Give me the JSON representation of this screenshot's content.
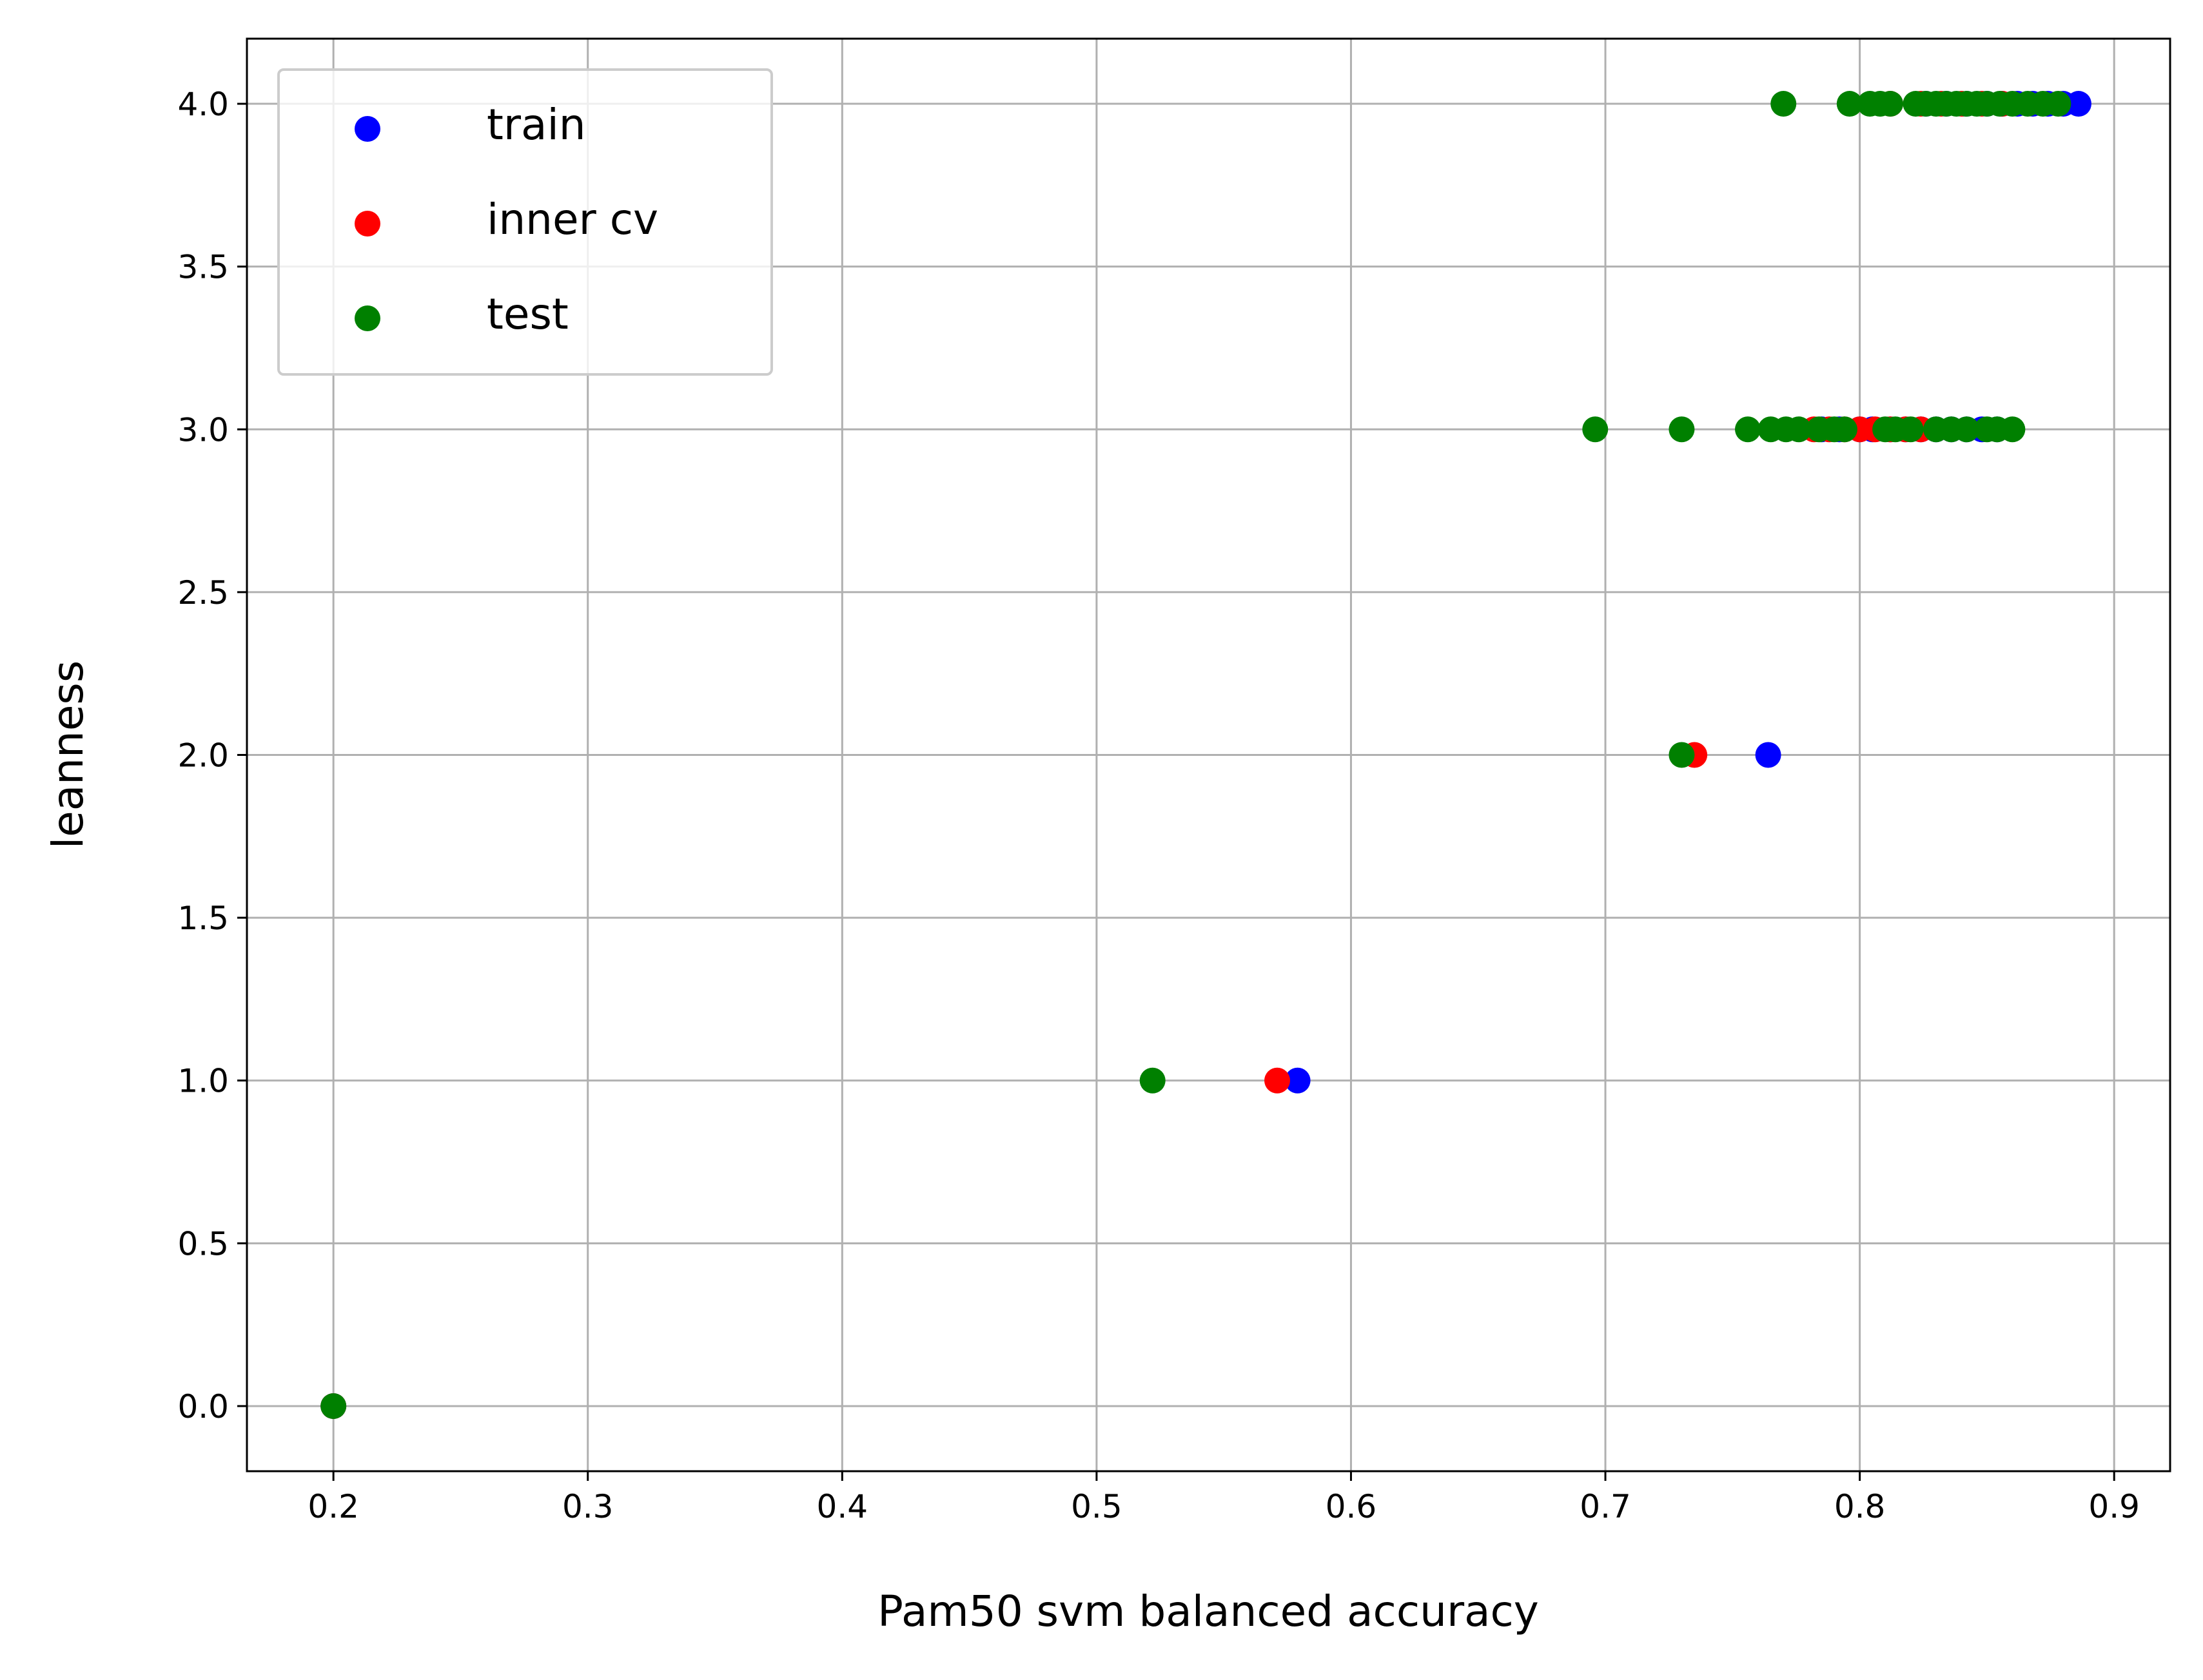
{
  "chart_data": {
    "type": "scatter",
    "title": "",
    "xlabel": "Pam50 svm balanced accuracy",
    "ylabel": "leanness",
    "xlim": [
      0.166,
      0.922
    ],
    "ylim": [
      -0.2,
      4.2
    ],
    "xticks": [
      {
        "value": 0.2,
        "label": "0.2"
      },
      {
        "value": 0.3,
        "label": "0.3"
      },
      {
        "value": 0.4,
        "label": "0.4"
      },
      {
        "value": 0.5,
        "label": "0.5"
      },
      {
        "value": 0.6,
        "label": "0.6"
      },
      {
        "value": 0.7,
        "label": "0.7"
      },
      {
        "value": 0.8,
        "label": "0.8"
      },
      {
        "value": 0.9,
        "label": "0.9"
      }
    ],
    "yticks": [
      {
        "value": 0.0,
        "label": "0.0"
      },
      {
        "value": 0.5,
        "label": "0.5"
      },
      {
        "value": 1.0,
        "label": "1.0"
      },
      {
        "value": 1.5,
        "label": "1.5"
      },
      {
        "value": 2.0,
        "label": "2.0"
      },
      {
        "value": 2.5,
        "label": "2.5"
      },
      {
        "value": 3.0,
        "label": "3.0"
      },
      {
        "value": 3.5,
        "label": "3.5"
      },
      {
        "value": 4.0,
        "label": "4.0"
      }
    ],
    "grid": true,
    "legend_position": "top-left",
    "series": [
      {
        "name": "train",
        "color": "#0000ff",
        "points": [
          {
            "x": 0.2,
            "y": 0
          },
          {
            "x": 0.579,
            "y": 1
          },
          {
            "x": 0.764,
            "y": 2
          },
          {
            "x": 0.785,
            "y": 3
          },
          {
            "x": 0.792,
            "y": 3
          },
          {
            "x": 0.8,
            "y": 3
          },
          {
            "x": 0.805,
            "y": 3
          },
          {
            "x": 0.812,
            "y": 3
          },
          {
            "x": 0.818,
            "y": 3
          },
          {
            "x": 0.824,
            "y": 3
          },
          {
            "x": 0.83,
            "y": 3
          },
          {
            "x": 0.836,
            "y": 3
          },
          {
            "x": 0.842,
            "y": 3
          },
          {
            "x": 0.848,
            "y": 3
          },
          {
            "x": 0.854,
            "y": 3
          },
          {
            "x": 0.826,
            "y": 4
          },
          {
            "x": 0.834,
            "y": 4
          },
          {
            "x": 0.842,
            "y": 4
          },
          {
            "x": 0.85,
            "y": 4
          },
          {
            "x": 0.856,
            "y": 4
          },
          {
            "x": 0.862,
            "y": 4
          },
          {
            "x": 0.868,
            "y": 4
          },
          {
            "x": 0.874,
            "y": 4
          },
          {
            "x": 0.88,
            "y": 4
          },
          {
            "x": 0.886,
            "y": 4
          }
        ]
      },
      {
        "name": "inner cv",
        "color": "#ff0000",
        "points": [
          {
            "x": 0.2,
            "y": 0
          },
          {
            "x": 0.571,
            "y": 1
          },
          {
            "x": 0.735,
            "y": 2
          },
          {
            "x": 0.782,
            "y": 3
          },
          {
            "x": 0.788,
            "y": 3
          },
          {
            "x": 0.794,
            "y": 3
          },
          {
            "x": 0.8,
            "y": 3
          },
          {
            "x": 0.806,
            "y": 3
          },
          {
            "x": 0.812,
            "y": 3
          },
          {
            "x": 0.818,
            "y": 3
          },
          {
            "x": 0.824,
            "y": 3
          },
          {
            "x": 0.812,
            "y": 4
          },
          {
            "x": 0.824,
            "y": 4
          },
          {
            "x": 0.832,
            "y": 4
          },
          {
            "x": 0.84,
            "y": 4
          },
          {
            "x": 0.848,
            "y": 4
          },
          {
            "x": 0.856,
            "y": 4
          }
        ]
      },
      {
        "name": "test",
        "color": "#008000",
        "points": [
          {
            "x": 0.2,
            "y": 0
          },
          {
            "x": 0.522,
            "y": 1
          },
          {
            "x": 0.73,
            "y": 2
          },
          {
            "x": 0.696,
            "y": 3
          },
          {
            "x": 0.73,
            "y": 3
          },
          {
            "x": 0.756,
            "y": 3
          },
          {
            "x": 0.765,
            "y": 3
          },
          {
            "x": 0.771,
            "y": 3
          },
          {
            "x": 0.776,
            "y": 3
          },
          {
            "x": 0.784,
            "y": 3
          },
          {
            "x": 0.79,
            "y": 3
          },
          {
            "x": 0.794,
            "y": 3
          },
          {
            "x": 0.81,
            "y": 3
          },
          {
            "x": 0.814,
            "y": 3
          },
          {
            "x": 0.82,
            "y": 3
          },
          {
            "x": 0.83,
            "y": 3
          },
          {
            "x": 0.836,
            "y": 3
          },
          {
            "x": 0.842,
            "y": 3
          },
          {
            "x": 0.85,
            "y": 3
          },
          {
            "x": 0.854,
            "y": 3
          },
          {
            "x": 0.86,
            "y": 3
          },
          {
            "x": 0.77,
            "y": 4
          },
          {
            "x": 0.796,
            "y": 4
          },
          {
            "x": 0.804,
            "y": 4
          },
          {
            "x": 0.808,
            "y": 4
          },
          {
            "x": 0.812,
            "y": 4
          },
          {
            "x": 0.822,
            "y": 4
          },
          {
            "x": 0.826,
            "y": 4
          },
          {
            "x": 0.83,
            "y": 4
          },
          {
            "x": 0.834,
            "y": 4
          },
          {
            "x": 0.838,
            "y": 4
          },
          {
            "x": 0.842,
            "y": 4
          },
          {
            "x": 0.846,
            "y": 4
          },
          {
            "x": 0.85,
            "y": 4
          },
          {
            "x": 0.855,
            "y": 4
          },
          {
            "x": 0.86,
            "y": 4
          },
          {
            "x": 0.866,
            "y": 4
          },
          {
            "x": 0.872,
            "y": 4
          },
          {
            "x": 0.878,
            "y": 4
          }
        ]
      }
    ]
  }
}
